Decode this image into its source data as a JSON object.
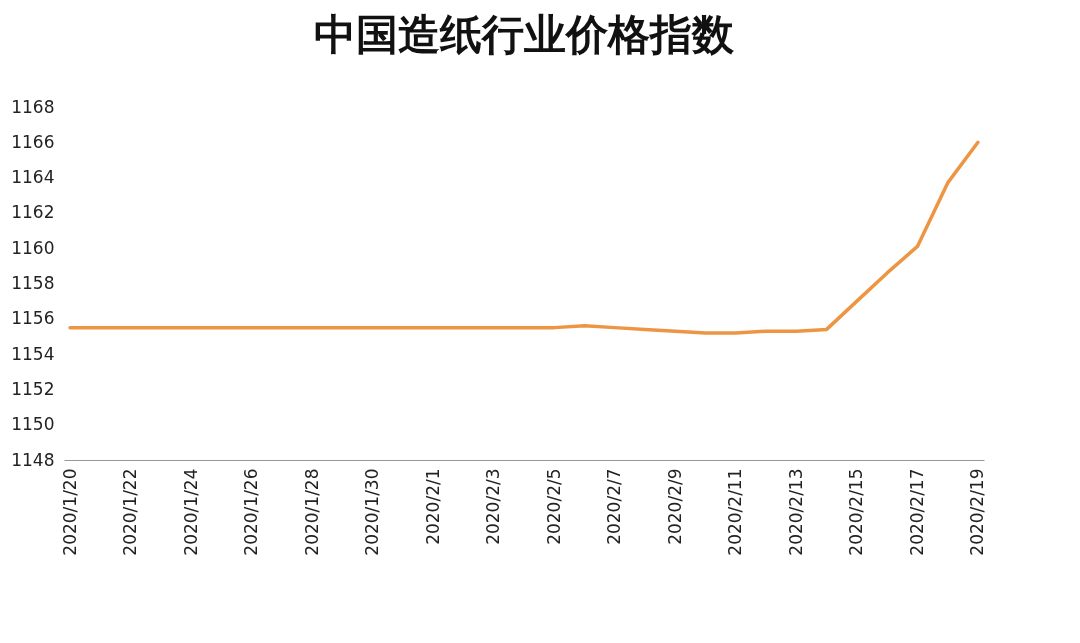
{
  "chart_data": {
    "type": "line",
    "title": "中国造纸行业价格指数",
    "categories": [
      "2020/1/20",
      null,
      "2020/1/22",
      null,
      "2020/1/24",
      null,
      "2020/1/26",
      null,
      "2020/1/28",
      null,
      "2020/1/30",
      null,
      "2020/2/1",
      null,
      "2020/2/3",
      null,
      "2020/2/5",
      null,
      "2020/2/7",
      null,
      "2020/2/9",
      null,
      "2020/2/11",
      null,
      "2020/2/13",
      null,
      "2020/2/15",
      null,
      "2020/2/17",
      null,
      "2020/2/19"
    ],
    "series": [
      {
        "color": "#ee9544",
        "values": [
          1155.5,
          1155.5,
          1155.5,
          1155.5,
          1155.5,
          1155.5,
          1155.5,
          1155.5,
          1155.5,
          1155.5,
          1155.5,
          1155.5,
          1155.5,
          1155.5,
          1155.5,
          1155.5,
          1155.5,
          1155.6,
          1155.5,
          1155.4,
          1155.3,
          1155.2,
          1155.2,
          1155.3,
          1155.3,
          1155.4,
          1157.0,
          1158.6,
          1160.1,
          1163.7,
          1166.0
        ]
      }
    ],
    "ylim": [
      1148,
      1168
    ],
    "yticks": [
      1148,
      1150,
      1152,
      1154,
      1156,
      1158,
      1160,
      1162,
      1164,
      1166,
      1168
    ],
    "grid": false,
    "marker": "none",
    "line_style": "solid"
  }
}
